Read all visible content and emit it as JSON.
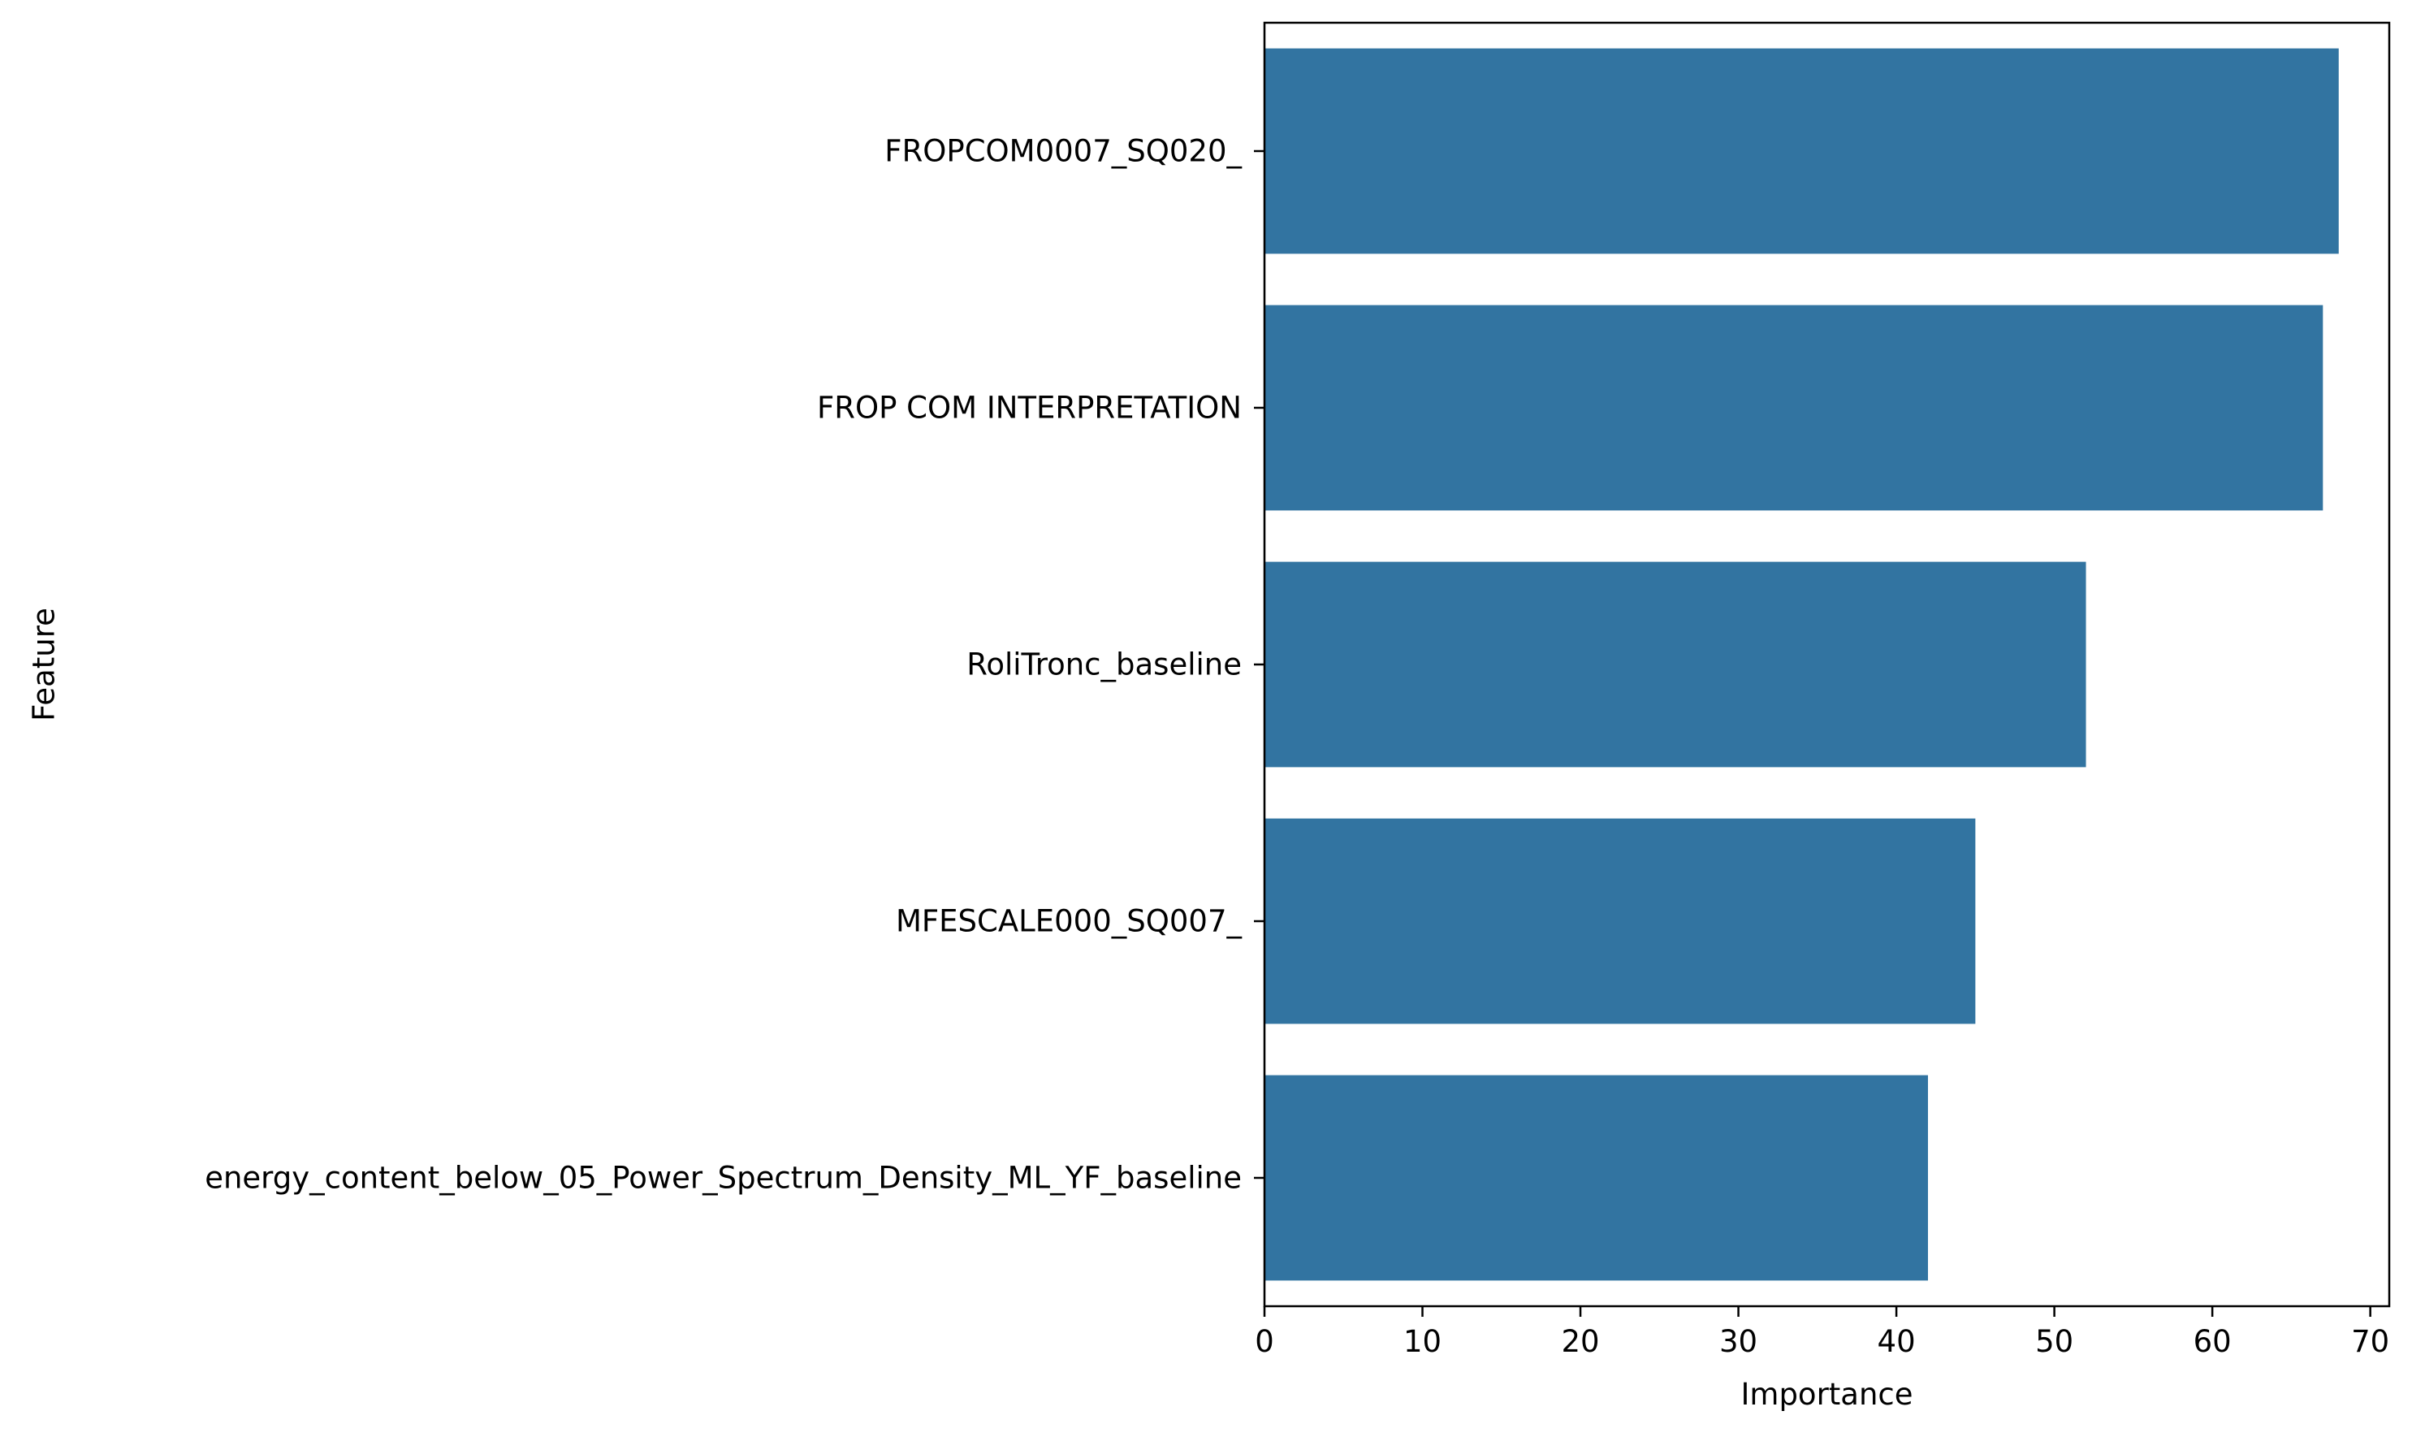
{
  "chart_data": {
    "type": "bar",
    "orientation": "horizontal",
    "categories": [
      "FROPCOM0007_SQ020_",
      "FROP COM INTERPRETATION",
      "RoliTronc_baseline",
      "MFESCALE000_SQ007_",
      "energy_content_below_05_Power_Spectrum_Density_ML_YF_baseline"
    ],
    "values": [
      68,
      67,
      52,
      45,
      42
    ],
    "title": "",
    "xlabel": "Importance",
    "ylabel": "Feature",
    "xlim": [
      0,
      71.2
    ],
    "xticks": [
      0,
      10,
      20,
      30,
      40,
      50,
      60,
      70
    ],
    "grid": false,
    "legend": "none",
    "bar_color": "#3274a1"
  }
}
